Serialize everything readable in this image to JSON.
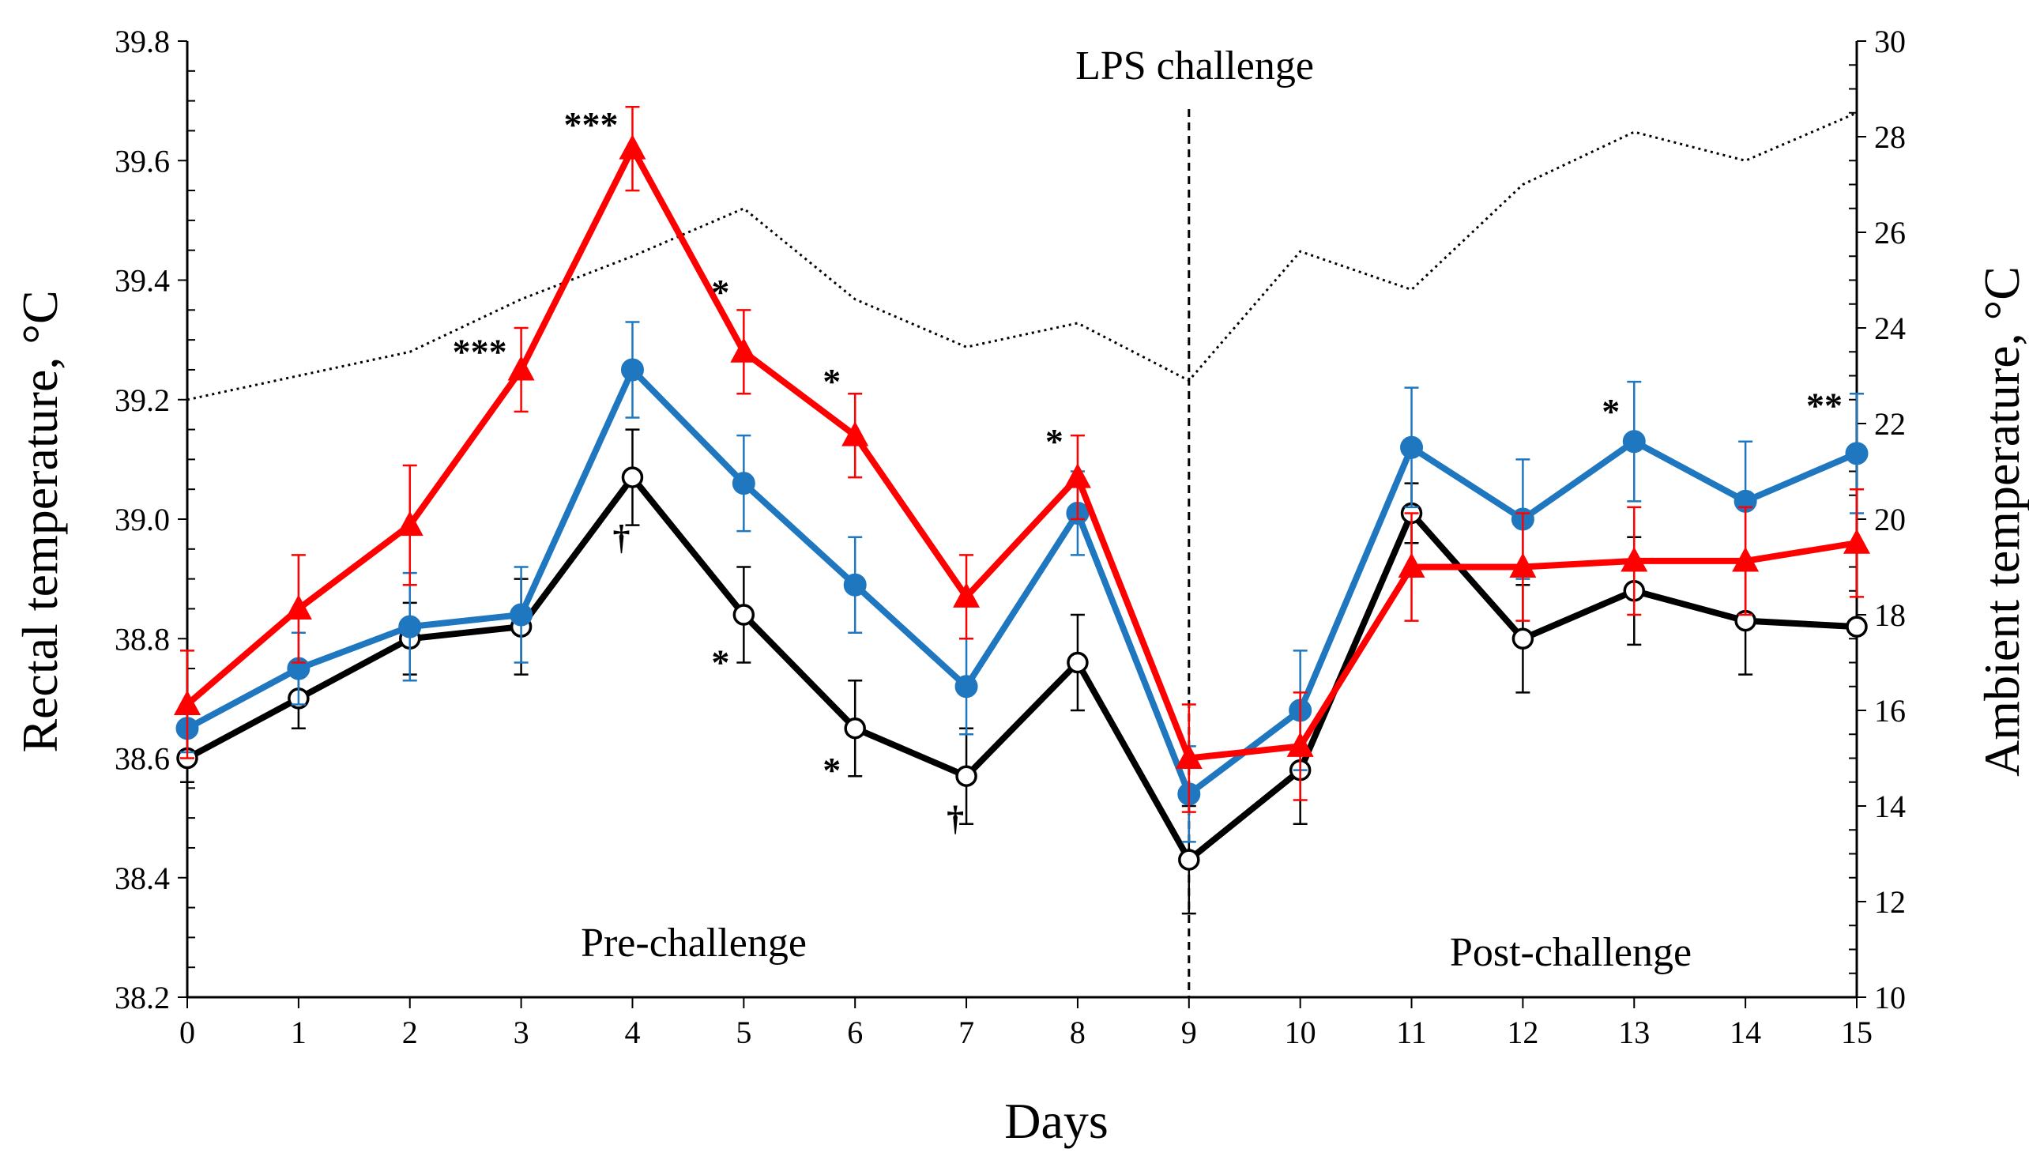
{
  "chart_data": {
    "type": "line",
    "xlabel": "Days",
    "ylabel": "Rectal temperature, °C",
    "y2label": "Ambient temperature, °C",
    "x": [
      0,
      1,
      2,
      3,
      4,
      5,
      6,
      7,
      8,
      9,
      10,
      11,
      12,
      13,
      14,
      15
    ],
    "xtick_labels": [
      "0",
      "1",
      "2",
      "3",
      "4",
      "5",
      "6",
      "7",
      "8",
      "9",
      "10",
      "11",
      "12",
      "13",
      "14",
      "15"
    ],
    "xlim": [
      0,
      15
    ],
    "ylim": [
      38.2,
      39.8
    ],
    "y_ticks": [
      "38.2",
      "38.4",
      "38.6",
      "38.8",
      "39.0",
      "39.2",
      "39.4",
      "39.6",
      "39.8"
    ],
    "y2lim": [
      10,
      30
    ],
    "y2_ticks": [
      "10",
      "12",
      "14",
      "16",
      "18",
      "20",
      "22",
      "24",
      "26",
      "28",
      "30"
    ],
    "annotations": {
      "lps": "LPS challenge",
      "pre": "Pre-challenge",
      "post": "Post-challenge"
    },
    "challenge_day": 9,
    "series": [
      {
        "name": "Series 1 (black, open circles)",
        "color": "#000000",
        "marker": "open-circle",
        "values": [
          38.6,
          38.7,
          38.8,
          38.82,
          39.07,
          38.84,
          38.65,
          38.57,
          38.76,
          38.43,
          38.58,
          39.01,
          38.8,
          38.88,
          38.83,
          38.82
        ],
        "err": [
          0.04,
          0.05,
          0.06,
          0.08,
          0.08,
          0.08,
          0.08,
          0.08,
          0.08,
          0.09,
          0.09,
          0.05,
          0.09,
          0.09,
          0.09,
          0.0
        ]
      },
      {
        "name": "Series 2 (blue, filled circles)",
        "color": "#1f77c0",
        "marker": "filled-circle",
        "values": [
          38.65,
          38.75,
          38.82,
          38.84,
          39.25,
          39.06,
          38.89,
          38.72,
          39.01,
          38.54,
          38.68,
          39.12,
          39.0,
          39.13,
          39.03,
          39.11
        ],
        "err": [
          0.04,
          0.06,
          0.09,
          0.08,
          0.08,
          0.08,
          0.08,
          0.08,
          0.07,
          0.08,
          0.1,
          0.1,
          0.1,
          0.1,
          0.1,
          0.1
        ]
      },
      {
        "name": "Series 3 (red, triangles)",
        "color": "#ff0000",
        "marker": "triangle",
        "values": [
          38.69,
          38.85,
          38.99,
          39.25,
          39.62,
          39.28,
          39.14,
          38.87,
          39.07,
          38.6,
          38.62,
          38.92,
          38.92,
          38.93,
          38.93,
          38.96
        ],
        "err": [
          0.09,
          0.09,
          0.1,
          0.07,
          0.07,
          0.07,
          0.07,
          0.07,
          0.07,
          0.09,
          0.09,
          0.09,
          0.09,
          0.09,
          0.09,
          0.09
        ]
      },
      {
        "name": "Ambient temperature (dotted)",
        "color": "#000000",
        "marker": "none",
        "axis": "right",
        "values": [
          22.5,
          23.0,
          23.5,
          24.6,
          25.5,
          26.5,
          24.6,
          23.6,
          24.1,
          22.9,
          25.6,
          24.8,
          27.0,
          28.1,
          27.5,
          28.5
        ]
      }
    ],
    "markers": [
      {
        "x": 3,
        "y": 39.26,
        "text": "***"
      },
      {
        "x": 4,
        "y": 39.64,
        "text": "***"
      },
      {
        "x": 4,
        "y": 38.95,
        "text": "†"
      },
      {
        "x": 5,
        "y": 39.36,
        "text": "*"
      },
      {
        "x": 5,
        "y": 38.74,
        "text": "*"
      },
      {
        "x": 6,
        "y": 39.21,
        "text": "*"
      },
      {
        "x": 6,
        "y": 38.56,
        "text": "*"
      },
      {
        "x": 7,
        "y": 38.48,
        "text": "†"
      },
      {
        "x": 8,
        "y": 39.11,
        "text": "*"
      },
      {
        "x": 13,
        "y": 39.16,
        "text": "*"
      },
      {
        "x": 15,
        "y": 39.17,
        "text": "**"
      }
    ]
  }
}
